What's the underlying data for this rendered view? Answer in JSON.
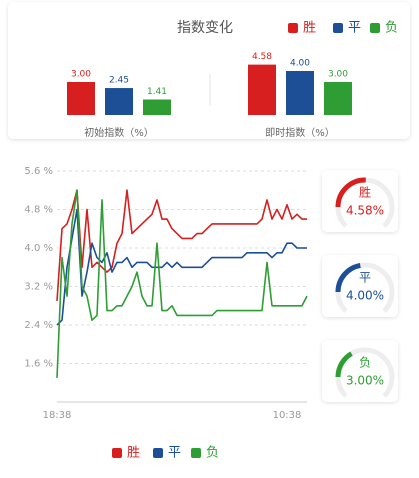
{
  "header": {
    "title": "指数变化"
  },
  "chart_data": [
    {
      "type": "bar",
      "xlabel": "初始指数（%）",
      "values": [
        3,
        2.45,
        1.41
      ],
      "value_labels": [
        "3.00",
        "2.45",
        "1.41"
      ],
      "colors": [
        "#d71f1f",
        "#1d4f97",
        "#2e9e34"
      ]
    },
    {
      "type": "bar",
      "xlabel": "即时指数（%）",
      "values": [
        4.58,
        4,
        3
      ],
      "value_labels": [
        "4.58",
        "4.00",
        "3.00"
      ],
      "colors": [
        "#d71f1f",
        "#1d4f97",
        "#2e9e34"
      ]
    },
    {
      "type": "line",
      "categories": [
        "18:38",
        null,
        null,
        null,
        null,
        null,
        null,
        null,
        null,
        null,
        null,
        null,
        null,
        null,
        null,
        null,
        null,
        null,
        null,
        null,
        null,
        null,
        null,
        null,
        null,
        null,
        null,
        null,
        null,
        null,
        null,
        null,
        null,
        null,
        null,
        null,
        null,
        null,
        null,
        null,
        null,
        null,
        null,
        null,
        null,
        null,
        "10:38",
        null,
        null,
        null,
        null
      ],
      "ylim": [
        0.8,
        5.6
      ],
      "yticks": [
        {
          "value": 5.6,
          "label": "5.6 %"
        },
        {
          "value": 4.8,
          "label": "4.8 %"
        },
        {
          "value": 4.0,
          "label": "4.0 %"
        },
        {
          "value": 3.2,
          "label": "3.2 %"
        },
        {
          "value": 2.4,
          "label": "2.4 %"
        },
        {
          "value": 1.6,
          "label": "1.6 %"
        }
      ],
      "grid": true,
      "series": [
        {
          "name": "胜",
          "color": "#d71f1f",
          "values": [
            2.9,
            4.4,
            4.5,
            4.8,
            5.2,
            3.6,
            4.8,
            3.6,
            3.7,
            3.6,
            3.5,
            3.6,
            4.1,
            4.3,
            5.2,
            4.3,
            4.4,
            4.5,
            4.6,
            4.7,
            5.0,
            4.6,
            4.6,
            4.4,
            4.3,
            4.2,
            4.2,
            4.2,
            4.3,
            4.3,
            4.4,
            4.5,
            4.5,
            4.5,
            4.5,
            4.5,
            4.5,
            4.5,
            4.5,
            4.5,
            4.5,
            4.6,
            5.0,
            4.6,
            4.8,
            4.6,
            4.9,
            4.6,
            4.7,
            4.6,
            4.6
          ]
        },
        {
          "name": "平",
          "color": "#1d4f97",
          "values": [
            2.4,
            2.5,
            3.6,
            4.2,
            4.8,
            3.0,
            3.5,
            4.1,
            3.8,
            3.7,
            3.9,
            3.5,
            3.7,
            3.7,
            3.8,
            3.6,
            3.7,
            3.7,
            3.7,
            3.6,
            3.6,
            3.6,
            3.7,
            3.6,
            3.7,
            3.6,
            3.6,
            3.6,
            3.6,
            3.6,
            3.7,
            3.8,
            3.8,
            3.8,
            3.8,
            3.8,
            3.8,
            3.8,
            3.9,
            3.9,
            3.9,
            3.9,
            3.9,
            3.8,
            3.9,
            3.9,
            4.1,
            4.1,
            4.0,
            4.0,
            4.0
          ]
        },
        {
          "name": "负",
          "color": "#2e9e34",
          "values": [
            1.3,
            3.8,
            3.0,
            4.5,
            5.2,
            3.2,
            3.0,
            2.5,
            2.6,
            5.0,
            2.7,
            2.7,
            2.8,
            2.8,
            3.0,
            3.2,
            3.5,
            3.0,
            2.8,
            2.8,
            4.1,
            2.7,
            2.7,
            2.8,
            2.6,
            2.6,
            2.6,
            2.6,
            2.6,
            2.6,
            2.6,
            2.6,
            2.7,
            2.7,
            2.7,
            2.7,
            2.7,
            2.7,
            2.7,
            2.7,
            2.7,
            2.7,
            3.7,
            2.8,
            2.8,
            2.8,
            2.8,
            2.8,
            2.8,
            2.8,
            3.0
          ]
        }
      ]
    }
  ],
  "gauges": [
    {
      "value": 4.58,
      "label": "4.58%"
    },
    {
      "value": 4.0,
      "label": "4.00%"
    },
    {
      "value": 3.0,
      "label": "3.00%"
    }
  ]
}
